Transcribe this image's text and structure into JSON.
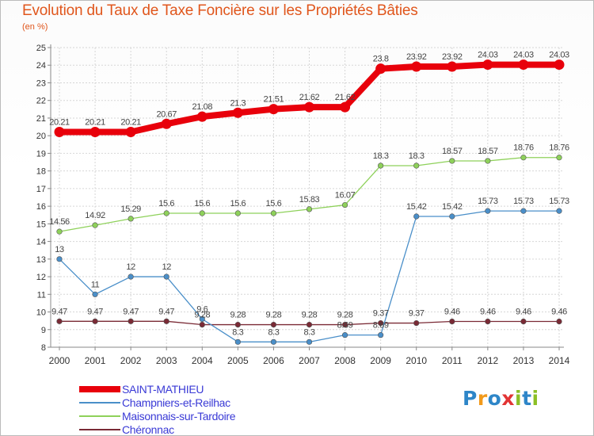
{
  "chart_data": {
    "type": "line",
    "title": "Evolution du Taux de Taxe Foncière sur les Propriétés Bâties",
    "subtitle": "(en %)",
    "xlabel": "",
    "ylabel": "",
    "x": [
      "2000",
      "2001",
      "2002",
      "2003",
      "2004",
      "2005",
      "2006",
      "2007",
      "2008",
      "2009",
      "2010",
      "2011",
      "2012",
      "2013",
      "2014"
    ],
    "ylim": [
      8,
      25
    ],
    "yticks": [
      8,
      9,
      10,
      11,
      12,
      13,
      14,
      15,
      16,
      17,
      18,
      19,
      20,
      21,
      22,
      23,
      24,
      25
    ],
    "series": [
      {
        "name": "SAINT-MATHIEU",
        "color": "#e8000b",
        "values": [
          20.21,
          20.21,
          20.21,
          20.67,
          21.08,
          21.3,
          21.51,
          21.62,
          21.62,
          23.8,
          23.92,
          23.92,
          24.03,
          24.03,
          24.03
        ],
        "labels": [
          "20.21",
          "20.21",
          "20.21",
          "20.67",
          "21.08",
          "21.3",
          "21.51",
          "21.62",
          "21.62",
          "23.8",
          "23.92",
          "23.92",
          "24.03",
          "24.03",
          "24.03"
        ]
      },
      {
        "name": "Champniers-et-Reilhac",
        "color": "#4a8fc9",
        "values": [
          13,
          11,
          12,
          12,
          9.6,
          8.3,
          8.3,
          8.3,
          8.69,
          8.69,
          15.42,
          15.42,
          15.73,
          15.73,
          15.73
        ],
        "labels": [
          "13",
          "11",
          "12",
          "12",
          "9.6",
          "8.3",
          "8.3",
          "8.3",
          "8.69",
          "8.69",
          "15.42",
          "15.42",
          "15.73",
          "15.73",
          "15.73"
        ]
      },
      {
        "name": "Maisonnais-sur-Tardoire",
        "color": "#8ed15a",
        "values": [
          14.56,
          14.92,
          15.29,
          15.6,
          15.6,
          15.6,
          15.6,
          15.83,
          16.07,
          18.3,
          18.3,
          18.57,
          18.57,
          18.76,
          18.76
        ],
        "labels": [
          "14.56",
          "14.92",
          "15.29",
          "15.6",
          "15.6",
          "15.6",
          "15.6",
          "15.83",
          "16.07",
          "18.3",
          "18.3",
          "18.57",
          "18.57",
          "18.76",
          "18.76"
        ]
      },
      {
        "name": "Chéronnac",
        "color": "#7a2a35",
        "values": [
          9.47,
          9.47,
          9.47,
          9.47,
          9.28,
          9.28,
          9.28,
          9.28,
          9.28,
          9.37,
          9.37,
          9.46,
          9.46,
          9.46,
          9.46
        ],
        "labels": [
          "9.47",
          "9.47",
          "9.47",
          "9.47",
          "9.28",
          "9.28",
          "9.28",
          "9.28",
          "9.28",
          "9.37",
          "9.37",
          "9.46",
          "9.46",
          "9.46",
          "9.46"
        ]
      }
    ]
  },
  "brand": {
    "letters": [
      "P",
      "r",
      "o",
      "x",
      "i",
      "t",
      "i"
    ]
  }
}
